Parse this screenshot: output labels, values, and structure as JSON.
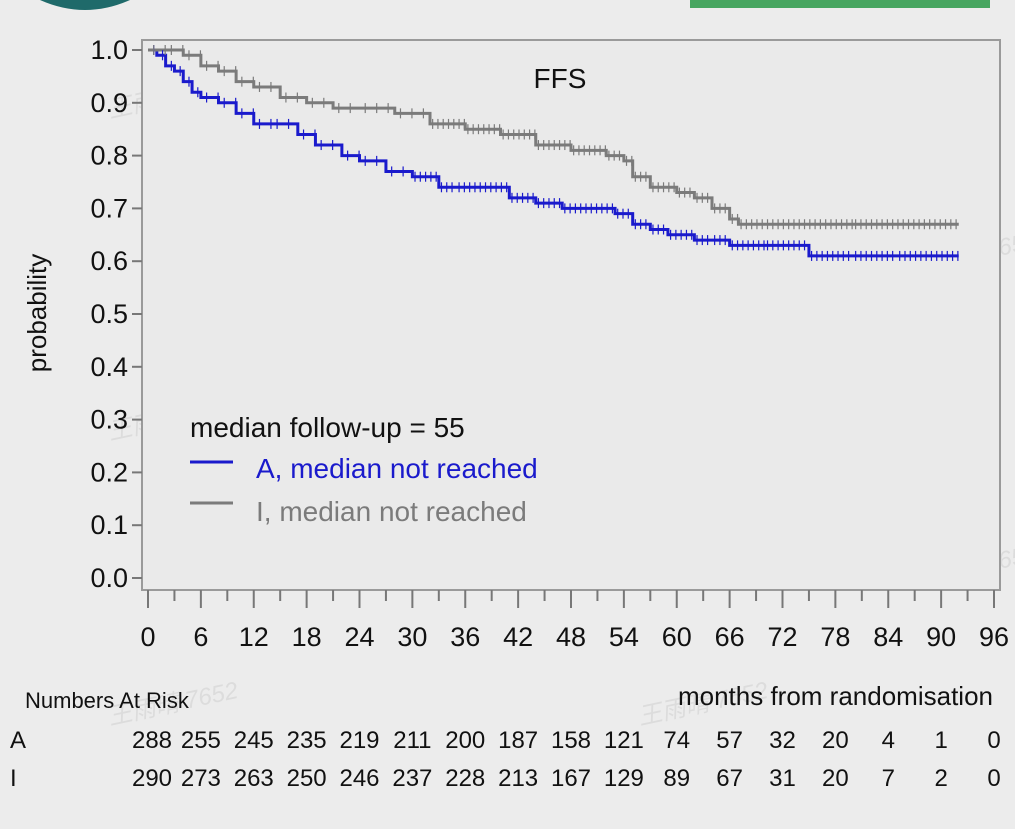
{
  "chart_data": {
    "type": "line",
    "subtype": "kaplan-meier",
    "title": "FFS",
    "ylabel": "probability",
    "xlabel": "months from randomisation",
    "xlim": [
      0,
      96
    ],
    "ylim": [
      0,
      1
    ],
    "x_ticks": [
      "0",
      "6",
      "12",
      "18",
      "24",
      "30",
      "36",
      "42",
      "48",
      "54",
      "60",
      "66",
      "72",
      "78",
      "84",
      "90",
      "96"
    ],
    "y_ticks": [
      "0.0",
      "0.1",
      "0.2",
      "0.3",
      "0.4",
      "0.5",
      "0.6",
      "0.7",
      "0.8",
      "0.9",
      "1.0"
    ],
    "legend": {
      "header": "median follow-up =  55",
      "placement": "lower-left"
    },
    "series": [
      {
        "name": "A, median not reached",
        "color": "#1a1acc",
        "x": [
          0,
          1,
          2,
          3,
          4,
          5,
          6,
          8,
          10,
          12,
          14,
          17,
          19,
          22,
          24,
          27,
          30,
          33,
          35,
          38,
          41,
          44,
          47,
          50,
          53,
          55,
          57,
          59,
          62,
          64,
          66,
          70,
          75,
          80,
          85,
          92
        ],
        "y": [
          1.0,
          0.99,
          0.97,
          0.96,
          0.94,
          0.92,
          0.91,
          0.9,
          0.88,
          0.86,
          0.86,
          0.84,
          0.82,
          0.8,
          0.79,
          0.77,
          0.76,
          0.74,
          0.74,
          0.74,
          0.72,
          0.71,
          0.7,
          0.7,
          0.69,
          0.67,
          0.66,
          0.65,
          0.64,
          0.64,
          0.63,
          0.63,
          0.61,
          0.61,
          0.61,
          0.61
        ]
      },
      {
        "name": "I, median not reached",
        "color": "#7b7b7b",
        "x": [
          0,
          2,
          4,
          6,
          8,
          10,
          12,
          15,
          18,
          21,
          24,
          28,
          32,
          36,
          40,
          44,
          48,
          52,
          54,
          55,
          57,
          60,
          62,
          64,
          66,
          67,
          70,
          80,
          92
        ],
        "y": [
          1.0,
          1.0,
          0.99,
          0.97,
          0.96,
          0.94,
          0.93,
          0.91,
          0.9,
          0.89,
          0.89,
          0.88,
          0.86,
          0.85,
          0.84,
          0.82,
          0.81,
          0.8,
          0.79,
          0.76,
          0.74,
          0.73,
          0.72,
          0.7,
          0.68,
          0.67,
          0.67,
          0.67,
          0.67
        ]
      }
    ],
    "at_risk": {
      "title": "Numbers At Risk",
      "rows": [
        {
          "label": "A",
          "values": [
            "288",
            "255",
            "245",
            "235",
            "219",
            "211",
            "200",
            "187",
            "158",
            "121",
            "74",
            "57",
            "32",
            "20",
            "4",
            "1",
            "0"
          ]
        },
        {
          "label": "I",
          "values": [
            "290",
            "273",
            "263",
            "250",
            "246",
            "237",
            "228",
            "213",
            "167",
            "129",
            "89",
            "67",
            "31",
            "20",
            "7",
            "2",
            "0"
          ]
        }
      ]
    }
  },
  "watermark": "王雨晴 7652"
}
